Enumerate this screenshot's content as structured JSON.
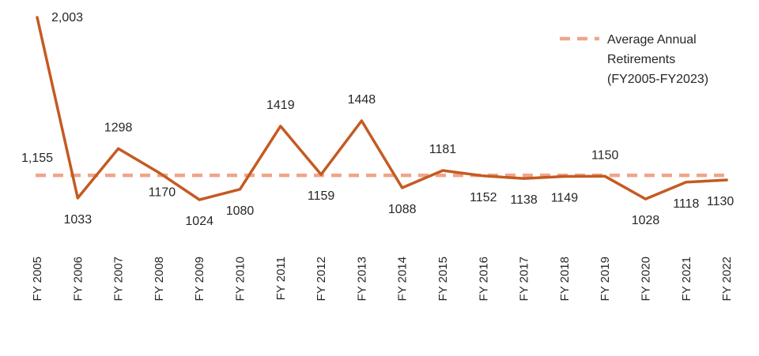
{
  "chart_data": {
    "type": "line",
    "title": "",
    "xlabel": "",
    "ylabel": "",
    "categories": [
      "FY 2005",
      "FY 2006",
      "FY 2007",
      "FY 2008",
      "FY 2009",
      "FY 2010",
      "FY 2011",
      "FY 2012",
      "FY 2013",
      "FY 2014",
      "FY 2015",
      "FY 2016",
      "FY 2017",
      "FY 2018",
      "FY 2019",
      "FY 2020",
      "FY 2021",
      "FY 2022"
    ],
    "series": [
      {
        "name": "",
        "values": [
          2003,
          1033,
          1298,
          1170,
          1024,
          1080,
          1419,
          1159,
          1448,
          1088,
          1181,
          1152,
          1138,
          1149,
          1150,
          1028,
          1118,
          1130
        ],
        "labels": [
          "2,003",
          "1033",
          "1298",
          "1170",
          "1024",
          "1080",
          "1419",
          "1159",
          "1448",
          "1088",
          "1181",
          "1152",
          "1138",
          "1149",
          "1150",
          "1028",
          "1118",
          "1130"
        ],
        "color": "#C55A22"
      }
    ],
    "average": {
      "name": "Average Annual Retirements (FY2005-FY2023)",
      "legend_lines": [
        "Average Annual",
        "Retirements",
        "(FY2005-FY2023)"
      ],
      "value": 1155,
      "label": "1,155",
      "color": "#EFA58A"
    },
    "ylim": [
      900,
      2050
    ],
    "grid": false,
    "legend": "top-right"
  }
}
